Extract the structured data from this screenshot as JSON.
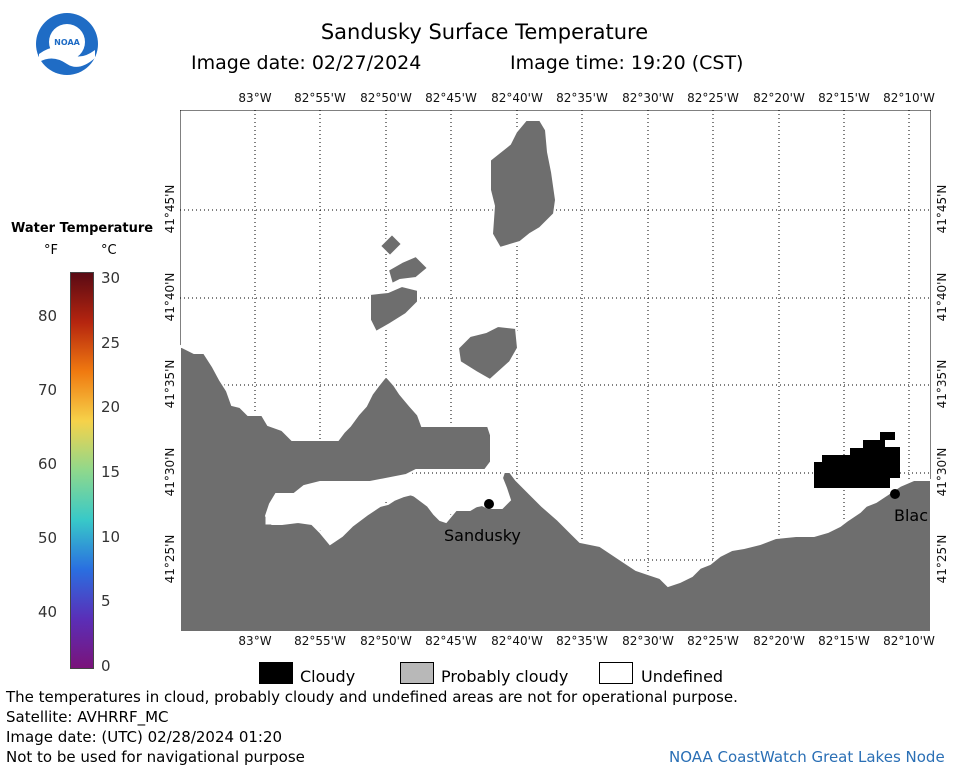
{
  "header": {
    "title": "Sandusky Surface Temperature",
    "image_date_label": "Image date: 02/27/2024",
    "image_time_label": "Image time: 19:20 (CST)"
  },
  "logo": {
    "text": "NOAA"
  },
  "colorbar": {
    "title": "Water Temperature",
    "unit_f": "°F",
    "unit_c": "°C",
    "f_ticks": [
      "80",
      "70",
      "60",
      "50",
      "40"
    ],
    "c_ticks": [
      "30",
      "25",
      "20",
      "15",
      "10",
      "5",
      "0"
    ],
    "colors": [
      "#5a0a14",
      "#b5250f",
      "#f07a10",
      "#f6d24a",
      "#8fd88c",
      "#38c9c8",
      "#2a6fe0",
      "#5a2fb8",
      "#7a137a"
    ]
  },
  "map": {
    "top_lon_labels": [
      "83°W",
      "82°55'W",
      "82°50'W",
      "82°45'W",
      "82°40'W",
      "82°35'W",
      "82°30'W",
      "82°25'W",
      "82°20'W",
      "82°15'W",
      "82°10'W"
    ],
    "bottom_lon_labels": [
      "83°W",
      "82°55'W",
      "82°50'W",
      "82°45'W",
      "82°40'W",
      "82°35'W",
      "82°30'W",
      "82°25'W",
      "82°20'W",
      "82°15'W",
      "82°10'W"
    ],
    "lat_labels": [
      "41°45'N",
      "41°40'N",
      "41°35'N",
      "41°30'N",
      "41°25'N"
    ],
    "places": {
      "sandusky": "Sandusky",
      "black": "Blac"
    },
    "colors": {
      "land": "#6e6e6e",
      "cloud": "#000000",
      "water_undefined": "#ffffff"
    }
  },
  "key": {
    "cloudy": "Cloudy",
    "probably_cloudy": "Probably cloudy",
    "undefined": "Undefined"
  },
  "footer": {
    "disclaimer": "The temperatures in cloud, probably cloudy and undefined areas are not for operational purpose.",
    "satellite": "Satellite: AVHRRF_MC",
    "utc_date": "Image date: (UTC) 02/28/2024  01:20",
    "navigation": "Not to be used for navigational purpose",
    "node": "NOAA CoastWatch Great Lakes Node"
  }
}
